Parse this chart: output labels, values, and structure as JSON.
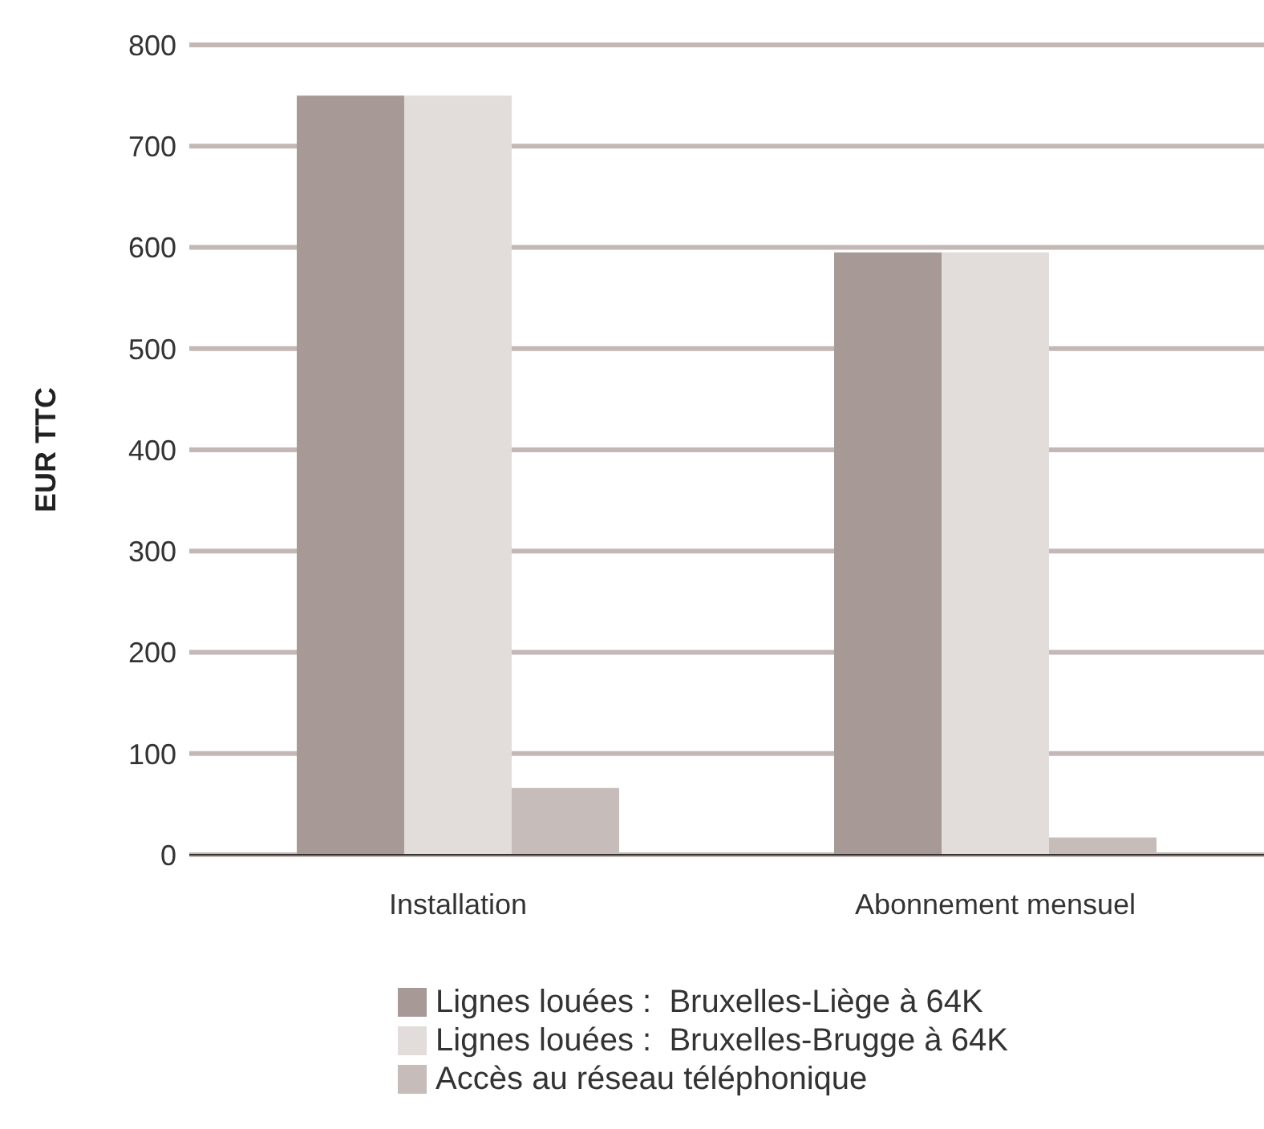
{
  "chart_data": {
    "type": "bar",
    "ylabel": "EUR TTC",
    "categories": [
      "Installation",
      "Abonnement mensuel"
    ],
    "series": [
      {
        "name": "Lignes louées :  Bruxelles-Liège à 64K",
        "color": "#a79a96",
        "values": [
          750,
          595
        ]
      },
      {
        "name": "Lignes louées :  Bruxelles-Brugge à 64K",
        "color": "#e2ddda",
        "values": [
          750,
          595
        ]
      },
      {
        "name": "Accès au réseau téléphonique",
        "color": "#c6bcb9",
        "values": [
          66,
          17
        ]
      }
    ],
    "ylim": [
      0,
      800
    ],
    "yticks": [
      0,
      100,
      200,
      300,
      400,
      500,
      600,
      700,
      800
    ],
    "grid": "y",
    "legend": "bottom"
  }
}
